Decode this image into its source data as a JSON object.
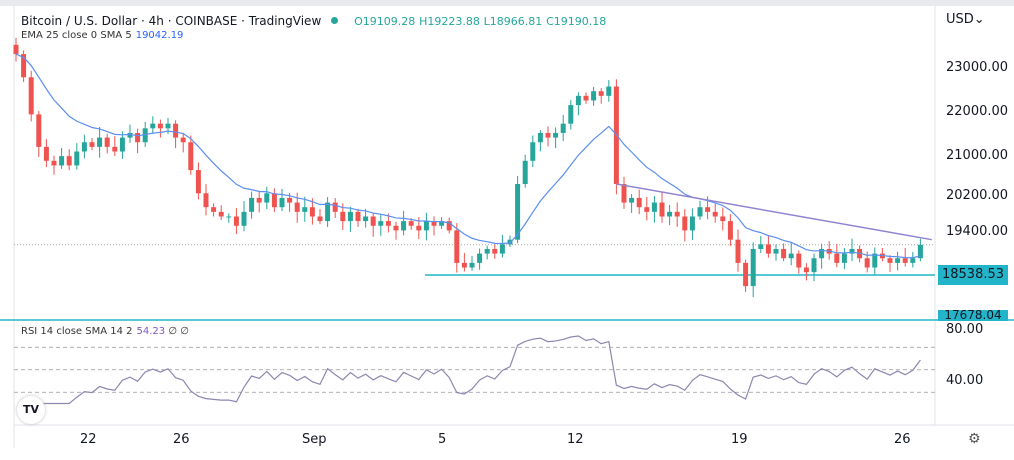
{
  "header": {
    "title": "Bitcoin / U.S. Dollar · 4h · COINBASE · TradingView",
    "open": "O19109.28",
    "high": "H19223.88",
    "low": "L18966.81",
    "close": "C19190.18",
    "ema_label": "EMA 25 close 0 SMA 5",
    "ema_value": "19042.19",
    "currency": "USD",
    "currency_caret": "⌄"
  },
  "rsi": {
    "label": "RSI 14 close SMA 14 2",
    "value": "54.23",
    "extra": "∅ ∅"
  },
  "icons": {
    "logo": "tradingview-logo",
    "settings": "gear-icon"
  },
  "logo_text": "TV",
  "settings_glyph": "⚙",
  "colors": {
    "up": "#26a69a",
    "down": "#ef5350",
    "ema": "#5b8ff0",
    "trendline": "#8f84cf",
    "support": "#22b5c9",
    "rsi": "#8d86b0"
  },
  "chart_data": [
    {
      "type": "candlestick",
      "title": "Bitcoin / U.S. Dollar",
      "interval": "4h",
      "scale": "linear",
      "y_ticks": [
        "23000.00",
        "22000.00",
        "21000.00",
        "20200.00",
        "19400.00"
      ],
      "y_tick_values": [
        23000,
        22000,
        21000,
        20200,
        19400
      ],
      "x_ticks": [
        "22",
        "26",
        "Sep",
        "5",
        "12",
        "19",
        "26"
      ],
      "price_labels": [
        "18538.53",
        "17678.04"
      ],
      "support_levels": [
        18538.53,
        17678.04
      ],
      "descending_trendline": {
        "from_price": 20500,
        "to_price": 19300
      },
      "closes": [
        23300,
        22800,
        22000,
        21300,
        21000,
        20900,
        21100,
        20900,
        21200,
        21400,
        21300,
        21500,
        21300,
        21200,
        21500,
        21600,
        21400,
        21700,
        21800,
        21700,
        21800,
        21500,
        21400,
        20800,
        20300,
        20000,
        19900,
        19800,
        19800,
        19600,
        19900,
        20200,
        20100,
        20300,
        20000,
        20200,
        20100,
        19900,
        20000,
        19800,
        19700,
        20100,
        19900,
        19700,
        19900,
        19700,
        19800,
        19600,
        19700,
        19600,
        19500,
        19700,
        19600,
        19500,
        19700,
        19600,
        19700,
        19500,
        18800,
        18700,
        18800,
        19000,
        19100,
        19000,
        19200,
        19300,
        20500,
        21000,
        21400,
        21600,
        21500,
        21600,
        21800,
        22200,
        22400,
        22300,
        22500,
        22400,
        22600,
        20500,
        20100,
        20200,
        20000,
        19900,
        20100,
        19800,
        19900,
        19800,
        19500,
        19800,
        20000,
        19900,
        19800,
        19700,
        19300,
        18800,
        18300,
        19100,
        19200,
        19000,
        19100,
        18900,
        19000,
        18700,
        18600,
        18900,
        19100,
        19000,
        18800,
        19000,
        19100,
        18900,
        18700,
        19000,
        18900,
        18800,
        18900,
        18800,
        18900,
        19190
      ],
      "grid": false
    },
    {
      "type": "line",
      "title": "RSI 14",
      "y_ticks": [
        "80.00",
        "40.00"
      ],
      "y_tick_values": [
        80,
        40
      ],
      "bands": [
        70,
        50,
        30
      ],
      "last_value": 54.23
    }
  ]
}
